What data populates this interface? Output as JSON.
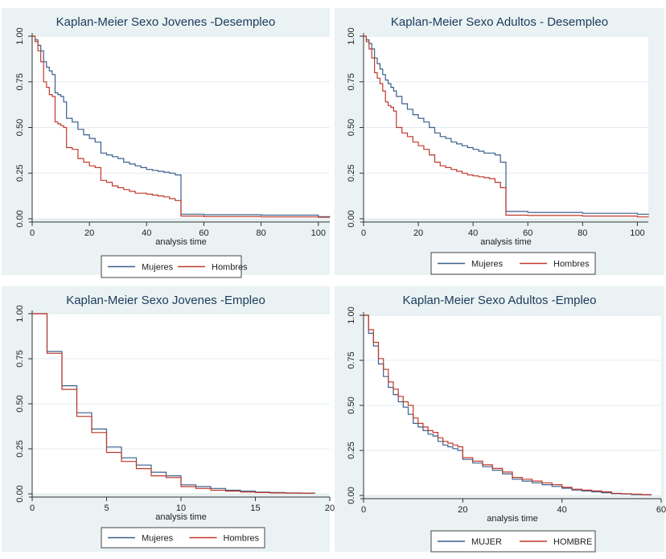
{
  "charts": {
    "jd": {
      "title": "Kaplan-Meier Sexo Jovenes -Desempleo",
      "xlabel": "analysis time",
      "yticks": [
        "0.00",
        "0.25",
        "0.50",
        "0.75",
        "1.00"
      ],
      "xticks": [
        "0",
        "20",
        "40",
        "60",
        "80",
        "100"
      ],
      "legend": [
        "Mujeres",
        "Hombres"
      ]
    },
    "ad": {
      "title": "Kaplan-Meier Sexo Adultos - Desempleo",
      "xlabel": "analysis time",
      "yticks": [
        "0.00",
        "0.25",
        "0.50",
        "0.75",
        "1.00"
      ],
      "xticks": [
        "0",
        "20",
        "40",
        "60",
        "80",
        "100"
      ],
      "legend": [
        "Mujeres",
        "Hombres"
      ]
    },
    "je": {
      "title": "Kaplan-Meier Sexo Jovenes -Empleo",
      "xlabel": "analysis time",
      "yticks": [
        "0.00",
        "0.25",
        "0.50",
        "0.75",
        "1.00"
      ],
      "xticks": [
        "0",
        "5",
        "10",
        "15",
        "20"
      ],
      "legend": [
        "Mujeres",
        "Hombres"
      ]
    },
    "ae": {
      "title": "Kaplan-Meier Sexo Adultos -Empleo",
      "xlabel": "analysis time",
      "yticks": [
        "0.00",
        "0.25",
        "0.50",
        "0.75",
        "1.00"
      ],
      "xticks": [
        "0",
        "20",
        "40",
        "60"
      ],
      "legend": [
        "MUJER",
        "HOMBRE"
      ]
    }
  },
  "chart_data": [
    {
      "id": "jd",
      "type": "line",
      "step": true,
      "title": "Kaplan-Meier Sexo Jovenes -Desempleo",
      "xlabel": "analysis time",
      "ylabel": "",
      "xlim": [
        0,
        104
      ],
      "ylim": [
        0,
        1
      ],
      "grid": true,
      "legend_position": "bottom",
      "series": [
        {
          "name": "Mujeres",
          "color": "#3a5f8c",
          "x": [
            0,
            1,
            2,
            3,
            4,
            5,
            6,
            7,
            8,
            9,
            10,
            11,
            12,
            14,
            16,
            18,
            20,
            22,
            24,
            26,
            28,
            30,
            32,
            34,
            36,
            38,
            40,
            42,
            44,
            46,
            48,
            50,
            52,
            60,
            80,
            100,
            104
          ],
          "y": [
            1.0,
            0.98,
            0.95,
            0.92,
            0.86,
            0.83,
            0.81,
            0.79,
            0.69,
            0.68,
            0.67,
            0.64,
            0.55,
            0.53,
            0.49,
            0.46,
            0.44,
            0.42,
            0.36,
            0.35,
            0.34,
            0.33,
            0.31,
            0.3,
            0.29,
            0.28,
            0.27,
            0.265,
            0.26,
            0.255,
            0.25,
            0.24,
            0.025,
            0.022,
            0.02,
            0.012,
            0.01
          ]
        },
        {
          "name": "Hombres",
          "color": "#c0392b",
          "x": [
            0,
            1,
            2,
            3,
            4,
            5,
            6,
            7,
            8,
            9,
            10,
            11,
            12,
            14,
            16,
            18,
            20,
            22,
            24,
            26,
            28,
            30,
            32,
            34,
            36,
            38,
            40,
            42,
            44,
            46,
            48,
            50,
            52,
            60,
            80,
            100,
            104
          ],
          "y": [
            1.0,
            0.97,
            0.92,
            0.86,
            0.75,
            0.72,
            0.68,
            0.67,
            0.53,
            0.52,
            0.51,
            0.5,
            0.39,
            0.38,
            0.33,
            0.31,
            0.29,
            0.28,
            0.21,
            0.2,
            0.18,
            0.17,
            0.16,
            0.15,
            0.14,
            0.14,
            0.135,
            0.13,
            0.125,
            0.12,
            0.11,
            0.1,
            0.015,
            0.012,
            0.01,
            0.008,
            0.008
          ]
        }
      ]
    },
    {
      "id": "ad",
      "type": "line",
      "step": true,
      "title": "Kaplan-Meier Sexo Adultos - Desempleo",
      "xlabel": "analysis time",
      "ylabel": "",
      "xlim": [
        0,
        104
      ],
      "ylim": [
        0,
        1
      ],
      "grid": true,
      "legend_position": "bottom",
      "series": [
        {
          "name": "Mujeres",
          "color": "#3a5f8c",
          "x": [
            0,
            1,
            2,
            3,
            4,
            5,
            6,
            7,
            8,
            9,
            10,
            11,
            12,
            14,
            16,
            18,
            20,
            22,
            24,
            26,
            28,
            30,
            32,
            34,
            36,
            38,
            40,
            42,
            44,
            46,
            48,
            50,
            52,
            60,
            80,
            100,
            104
          ],
          "y": [
            1.0,
            0.98,
            0.96,
            0.93,
            0.88,
            0.85,
            0.82,
            0.79,
            0.76,
            0.74,
            0.72,
            0.7,
            0.67,
            0.63,
            0.6,
            0.57,
            0.55,
            0.53,
            0.5,
            0.47,
            0.45,
            0.44,
            0.42,
            0.41,
            0.4,
            0.39,
            0.38,
            0.37,
            0.36,
            0.36,
            0.35,
            0.31,
            0.04,
            0.035,
            0.03,
            0.025,
            0.02
          ]
        },
        {
          "name": "Hombres",
          "color": "#c0392b",
          "x": [
            0,
            1,
            2,
            3,
            4,
            5,
            6,
            7,
            8,
            9,
            10,
            11,
            12,
            14,
            16,
            18,
            20,
            22,
            24,
            26,
            28,
            30,
            32,
            34,
            36,
            38,
            40,
            42,
            44,
            46,
            48,
            50,
            52,
            60,
            80,
            100,
            104
          ],
          "y": [
            1.0,
            0.97,
            0.93,
            0.88,
            0.8,
            0.77,
            0.74,
            0.7,
            0.64,
            0.62,
            0.61,
            0.59,
            0.5,
            0.47,
            0.45,
            0.42,
            0.4,
            0.38,
            0.35,
            0.31,
            0.29,
            0.28,
            0.27,
            0.26,
            0.25,
            0.24,
            0.235,
            0.23,
            0.225,
            0.22,
            0.2,
            0.17,
            0.02,
            0.018,
            0.015,
            0.01,
            0.008
          ]
        }
      ]
    },
    {
      "id": "je",
      "type": "line",
      "step": true,
      "title": "Kaplan-Meier Sexo Jovenes -Empleo",
      "xlabel": "analysis time",
      "ylabel": "",
      "xlim": [
        0,
        20
      ],
      "ylim": [
        0,
        1
      ],
      "grid": true,
      "legend_position": "bottom",
      "series": [
        {
          "name": "Mujeres",
          "color": "#3a5f8c",
          "x": [
            0,
            1,
            2,
            3,
            4,
            5,
            6,
            7,
            8,
            9,
            10,
            11,
            12,
            13,
            14,
            15,
            16,
            17,
            18,
            19
          ],
          "y": [
            1.0,
            0.79,
            0.6,
            0.45,
            0.36,
            0.26,
            0.2,
            0.16,
            0.12,
            0.1,
            0.05,
            0.04,
            0.03,
            0.02,
            0.015,
            0.01,
            0.007,
            0.005,
            0.004,
            0.003
          ]
        },
        {
          "name": "Hombres",
          "color": "#c0392b",
          "x": [
            0,
            1,
            2,
            3,
            4,
            5,
            6,
            7,
            8,
            9,
            10,
            11,
            12,
            13,
            14,
            15,
            16,
            17,
            18,
            19
          ],
          "y": [
            1.0,
            0.78,
            0.58,
            0.43,
            0.34,
            0.23,
            0.18,
            0.14,
            0.1,
            0.09,
            0.04,
            0.03,
            0.02,
            0.015,
            0.01,
            0.007,
            0.005,
            0.004,
            0.003,
            0.003
          ]
        }
      ]
    },
    {
      "id": "ae",
      "type": "line",
      "step": true,
      "title": "Kaplan-Meier Sexo Adultos -Empleo",
      "xlabel": "analysis time",
      "ylabel": "",
      "xlim": [
        0,
        60
      ],
      "ylim": [
        0,
        1
      ],
      "grid": true,
      "legend_position": "bottom",
      "series": [
        {
          "name": "MUJER",
          "color": "#3a5f8c",
          "x": [
            0,
            1,
            2,
            3,
            4,
            5,
            6,
            7,
            8,
            9,
            10,
            11,
            12,
            13,
            14,
            15,
            16,
            17,
            18,
            19,
            20,
            22,
            24,
            26,
            28,
            30,
            32,
            34,
            36,
            38,
            40,
            42,
            44,
            46,
            48,
            50,
            52,
            54,
            56,
            58
          ],
          "y": [
            1.0,
            0.9,
            0.83,
            0.73,
            0.66,
            0.6,
            0.56,
            0.52,
            0.49,
            0.45,
            0.4,
            0.38,
            0.36,
            0.34,
            0.33,
            0.3,
            0.28,
            0.27,
            0.26,
            0.25,
            0.2,
            0.18,
            0.16,
            0.14,
            0.12,
            0.09,
            0.08,
            0.07,
            0.06,
            0.05,
            0.04,
            0.03,
            0.025,
            0.02,
            0.015,
            0.01,
            0.008,
            0.005,
            0.004,
            0.003
          ]
        },
        {
          "name": "HOMBRE",
          "color": "#c0392b",
          "x": [
            0,
            1,
            2,
            3,
            4,
            5,
            6,
            7,
            8,
            9,
            10,
            11,
            12,
            13,
            14,
            15,
            16,
            17,
            18,
            19,
            20,
            22,
            24,
            26,
            28,
            30,
            32,
            34,
            36,
            38,
            40,
            42,
            44,
            46,
            48,
            50,
            52,
            54,
            56,
            58
          ],
          "y": [
            1.0,
            0.92,
            0.85,
            0.76,
            0.7,
            0.63,
            0.59,
            0.55,
            0.52,
            0.5,
            0.43,
            0.4,
            0.38,
            0.36,
            0.35,
            0.32,
            0.3,
            0.29,
            0.28,
            0.27,
            0.21,
            0.19,
            0.17,
            0.15,
            0.13,
            0.1,
            0.09,
            0.08,
            0.07,
            0.06,
            0.045,
            0.035,
            0.03,
            0.025,
            0.02,
            0.012,
            0.01,
            0.007,
            0.005,
            0.004
          ]
        }
      ]
    }
  ]
}
